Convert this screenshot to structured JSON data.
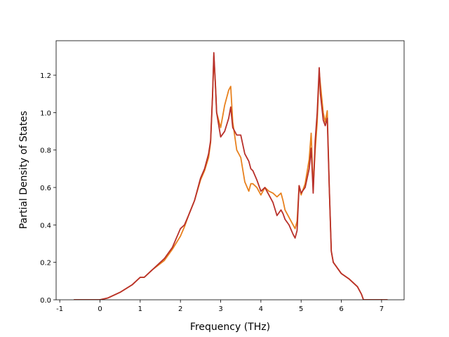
{
  "chart_data": {
    "type": "line",
    "x_label": "Frequency (THz)",
    "y_label": "Partial Density of States",
    "x": [
      -0.65,
      0,
      0.2,
      0.5,
      0.8,
      1.0,
      1.1,
      1.3,
      1.6,
      1.8,
      2.0,
      2.1,
      2.2,
      2.35,
      2.5,
      2.6,
      2.7,
      2.75,
      2.8,
      2.83,
      2.87,
      2.9,
      3.0,
      3.1,
      3.2,
      3.25,
      3.3,
      3.4,
      3.5,
      3.6,
      3.7,
      3.75,
      3.8,
      3.9,
      4.0,
      4.1,
      4.2,
      4.3,
      4.4,
      4.5,
      4.55,
      4.6,
      4.7,
      4.8,
      4.85,
      4.9,
      4.95,
      5.0,
      5.1,
      5.2,
      5.25,
      5.3,
      5.35,
      5.4,
      5.45,
      5.48,
      5.55,
      5.6,
      5.65,
      5.7,
      5.75,
      5.8,
      5.9,
      6.0,
      6.2,
      6.4,
      6.5,
      6.55,
      7.15
    ],
    "series": [
      {
        "color": "#e8811e",
        "values": [
          0,
          0,
          0.01,
          0.04,
          0.08,
          0.12,
          0.12,
          0.16,
          0.21,
          0.27,
          0.34,
          0.39,
          0.45,
          0.53,
          0.64,
          0.69,
          0.76,
          0.84,
          1.1,
          1.3,
          1.15,
          1.0,
          0.92,
          1.04,
          1.12,
          1.14,
          0.95,
          0.8,
          0.76,
          0.63,
          0.58,
          0.62,
          0.62,
          0.6,
          0.56,
          0.6,
          0.58,
          0.57,
          0.55,
          0.57,
          0.53,
          0.48,
          0.44,
          0.4,
          0.38,
          0.42,
          0.61,
          0.56,
          0.62,
          0.75,
          0.89,
          0.6,
          0.8,
          0.95,
          1.22,
          1.15,
          1.0,
          0.95,
          1.01,
          0.6,
          0.26,
          0.2,
          0.17,
          0.14,
          0.11,
          0.07,
          0.03,
          0,
          0
        ]
      },
      {
        "color": "#b8302a",
        "values": [
          0,
          0,
          0.01,
          0.04,
          0.08,
          0.12,
          0.12,
          0.16,
          0.22,
          0.28,
          0.38,
          0.4,
          0.45,
          0.53,
          0.65,
          0.7,
          0.78,
          0.85,
          1.1,
          1.32,
          1.15,
          1.0,
          0.87,
          0.9,
          0.97,
          1.03,
          0.92,
          0.88,
          0.88,
          0.78,
          0.74,
          0.7,
          0.69,
          0.64,
          0.58,
          0.6,
          0.56,
          0.52,
          0.45,
          0.48,
          0.46,
          0.43,
          0.4,
          0.35,
          0.33,
          0.37,
          0.61,
          0.57,
          0.6,
          0.7,
          0.81,
          0.57,
          0.85,
          1.0,
          1.24,
          1.1,
          0.96,
          0.93,
          0.97,
          0.6,
          0.26,
          0.2,
          0.17,
          0.14,
          0.11,
          0.07,
          0.03,
          0,
          0
        ]
      }
    ],
    "xlim": [
      -1.09,
      7.56
    ],
    "ylim": [
      0,
      1.384
    ],
    "xticks": [
      -1,
      0,
      1,
      2,
      3,
      4,
      5,
      6,
      7
    ],
    "yticks": [
      {
        "value": 0,
        "label": "0.0"
      },
      {
        "value": 0.2,
        "label": "0.2"
      },
      {
        "value": 0.4,
        "label": "0.4"
      },
      {
        "value": 0.6,
        "label": "0.6"
      },
      {
        "value": 0.8,
        "label": "0.8"
      },
      {
        "value": 1.0,
        "label": "1.0"
      },
      {
        "value": 1.2,
        "label": "1.2"
      }
    ]
  }
}
